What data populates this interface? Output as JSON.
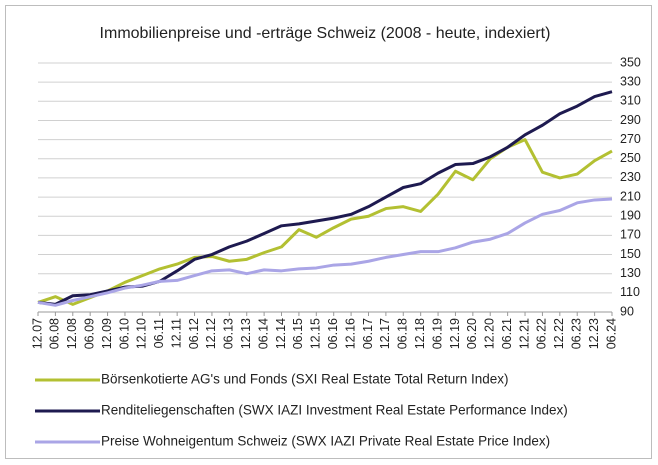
{
  "chart_data": {
    "type": "line",
    "title": "Immobilienpreise und -erträge Schweiz (2008 - heute, indexiert)",
    "categories": [
      "12.07",
      "06.08",
      "12.08",
      "06.09",
      "12.09",
      "06.10",
      "12.10",
      "06.11",
      "12.11",
      "06.12",
      "12.12",
      "06.13",
      "12.13",
      "06.14",
      "12.14",
      "06.15",
      "12.15",
      "06.16",
      "12.16",
      "06.17",
      "12.17",
      "06.18",
      "12.18",
      "06.19",
      "12.19",
      "06.20",
      "12.20",
      "06.21",
      "12.21",
      "06.22",
      "12.22",
      "06.23",
      "12.23",
      "06.24"
    ],
    "series": [
      {
        "name": "Börsenkotierte AG's und Fonds (SXI Real Estate Total Return Index)",
        "color": "#b3c032",
        "values": [
          100,
          106,
          98,
          105,
          112,
          121,
          128,
          135,
          140,
          147,
          148,
          143,
          145,
          152,
          158,
          176,
          168,
          178,
          187,
          190,
          198,
          200,
          195,
          213,
          237,
          228,
          250,
          262,
          270,
          236,
          230,
          234,
          248,
          258
        ]
      },
      {
        "name": "Renditeliegenschaften (SWX IAZI Investment Real Estate Performance Index)",
        "color": "#1e1a50",
        "values": [
          100,
          98,
          107,
          108,
          112,
          116,
          117,
          122,
          133,
          145,
          150,
          158,
          164,
          172,
          180,
          182,
          185,
          188,
          192,
          200,
          210,
          220,
          224,
          235,
          244,
          245,
          252,
          262,
          275,
          285,
          297,
          305,
          315,
          320
        ]
      },
      {
        "name": "Preise Wohneigentum Schweiz (SWX IAZI Private Real Estate Price Index)",
        "color": "#aaa5e6",
        "values": [
          100,
          97,
          102,
          106,
          110,
          115,
          118,
          122,
          123,
          128,
          133,
          134,
          130,
          134,
          133,
          135,
          136,
          139,
          140,
          143,
          147,
          150,
          153,
          153,
          157,
          163,
          166,
          172,
          183,
          192,
          196,
          204,
          207,
          208
        ]
      }
    ],
    "ylim": [
      90,
      350
    ],
    "yticks": [
      90,
      110,
      130,
      150,
      170,
      190,
      210,
      230,
      250,
      270,
      290,
      310,
      330,
      350
    ],
    "grid": true
  }
}
